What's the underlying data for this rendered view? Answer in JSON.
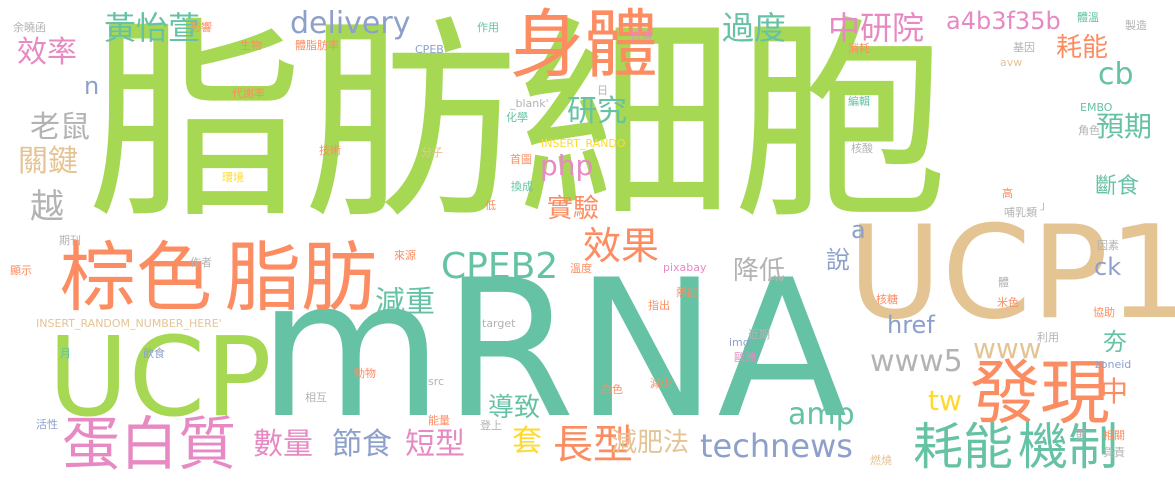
{
  "palette": {
    "green": "#a6d854",
    "teal": "#66c2a5",
    "orange": "#fc8d62",
    "tan": "#e5c494",
    "pink": "#e78ac3",
    "blue": "#8da0cb",
    "yellow": "#ffd92f",
    "gray": "#b3b3b3"
  },
  "words": [
    {
      "text": "脂肪細胞",
      "color": "green"
    },
    {
      "text": "mRNA",
      "color": "teal"
    },
    {
      "text": "UCP1",
      "color": "tan"
    },
    {
      "text": "UCP",
      "color": "green"
    },
    {
      "text": "身體",
      "color": "orange"
    },
    {
      "text": "棕色",
      "color": "orange"
    },
    {
      "text": "脂肪",
      "color": "orange"
    },
    {
      "text": "蛋白質",
      "color": "pink"
    },
    {
      "text": "發現",
      "color": "orange"
    },
    {
      "text": "機制",
      "color": "teal"
    },
    {
      "text": "耗能",
      "color": "teal"
    },
    {
      "text": "CPEB2",
      "color": "teal"
    },
    {
      "text": "效果",
      "color": "orange"
    },
    {
      "text": "長型",
      "color": "orange"
    },
    {
      "text": "technews",
      "color": "blue"
    },
    {
      "text": "中研院",
      "color": "pink"
    },
    {
      "text": "過度",
      "color": "teal"
    },
    {
      "text": "a4b3f35b",
      "color": "pink"
    },
    {
      "text": "delivery",
      "color": "blue"
    },
    {
      "text": "黃怡萱",
      "color": "teal"
    },
    {
      "text": "效率",
      "color": "pink"
    },
    {
      "text": "研究",
      "color": "teal"
    },
    {
      "text": "老鼠",
      "color": "gray"
    },
    {
      "text": "關鍵",
      "color": "tan"
    },
    {
      "text": "越",
      "color": "gray"
    },
    {
      "text": "php",
      "color": "pink"
    },
    {
      "text": "實驗",
      "color": "orange"
    },
    {
      "text": "耗能",
      "color": "orange"
    },
    {
      "text": "cb",
      "color": "teal"
    },
    {
      "text": "預期",
      "color": "teal"
    },
    {
      "text": "斷食",
      "color": "teal"
    },
    {
      "text": "中",
      "color": "orange"
    },
    {
      "text": "www5",
      "color": "gray"
    },
    {
      "text": "www",
      "color": "tan"
    },
    {
      "text": "amp",
      "color": "teal"
    },
    {
      "text": "tw",
      "color": "yellow"
    },
    {
      "text": "數量",
      "color": "pink"
    },
    {
      "text": "節食",
      "color": "blue"
    },
    {
      "text": "短型",
      "color": "pink"
    },
    {
      "text": "減肥法",
      "color": "tan"
    },
    {
      "text": "套",
      "color": "yellow"
    },
    {
      "text": "降低",
      "color": "gray"
    },
    {
      "text": "說",
      "color": "blue"
    },
    {
      "text": "減重",
      "color": "teal"
    },
    {
      "text": "導致",
      "color": "teal"
    },
    {
      "text": "夯",
      "color": "teal"
    },
    {
      "text": "href",
      "color": "blue"
    },
    {
      "text": "ck",
      "color": "blue"
    },
    {
      "text": "a",
      "color": "blue"
    },
    {
      "text": "n",
      "color": "blue"
    },
    {
      "text": "余曉函",
      "color": "gray"
    },
    {
      "text": "影響",
      "color": "orange"
    },
    {
      "text": "生物",
      "color": "orange"
    },
    {
      "text": "體脂肪率",
      "color": "orange"
    },
    {
      "text": "CPEB",
      "color": "blue"
    },
    {
      "text": "作用",
      "color": "teal"
    },
    {
      "text": "扮演",
      "color": "pink"
    },
    {
      "text": "消耗",
      "color": "orange"
    },
    {
      "text": "基因",
      "color": "gray"
    },
    {
      "text": "體溫",
      "color": "teal"
    },
    {
      "text": "製造",
      "color": "gray"
    },
    {
      "text": "avw",
      "color": "tan"
    },
    {
      "text": "日",
      "color": "gray"
    },
    {
      "text": "_blank'",
      "color": "gray"
    },
    {
      "text": "代謝率",
      "color": "orange"
    },
    {
      "text": "化學",
      "color": "teal"
    },
    {
      "text": "編輯",
      "color": "teal"
    },
    {
      "text": "EMBO",
      "color": "teal"
    },
    {
      "text": "角色",
      "color": "gray"
    },
    {
      "text": "技術",
      "color": "orange"
    },
    {
      "text": "分子",
      "color": "tan"
    },
    {
      "text": "核酸",
      "color": "gray"
    },
    {
      "text": "INSERT_RANDO",
      "color": "yellow"
    },
    {
      "text": "首圖",
      "color": "orange"
    },
    {
      "text": "環境",
      "color": "yellow"
    },
    {
      "text": "換成",
      "color": "teal"
    },
    {
      "text": "低",
      "color": "orange"
    },
    {
      "text": "高",
      "color": "orange"
    },
    {
      "text": "哺乳類",
      "color": "gray"
    },
    {
      "text": "」",
      "color": "gray"
    },
    {
      "text": "期刊",
      "color": "gray"
    },
    {
      "text": "作者",
      "color": "gray"
    },
    {
      "text": "來源",
      "color": "orange"
    },
    {
      "text": "溫度",
      "color": "orange"
    },
    {
      "text": "pixabay",
      "color": "pink"
    },
    {
      "text": "因素",
      "color": "gray"
    },
    {
      "text": "顯示",
      "color": "orange"
    },
    {
      "text": "熱能",
      "color": "orange"
    },
    {
      "text": "體",
      "color": "gray"
    },
    {
      "text": "核糖",
      "color": "orange"
    },
    {
      "text": "米色",
      "color": "orange"
    },
    {
      "text": "INSERT_RANDOM_NUMBER_HERE'",
      "color": "tan"
    },
    {
      "text": "target",
      "color": "gray"
    },
    {
      "text": "指出",
      "color": "orange"
    },
    {
      "text": "img",
      "color": "blue"
    },
    {
      "text": "近期",
      "color": "gray"
    },
    {
      "text": "協助",
      "color": "orange"
    },
    {
      "text": "月",
      "color": "teal"
    },
    {
      "text": "飲食",
      "color": "blue"
    },
    {
      "text": "歐洲",
      "color": "pink"
    },
    {
      "text": "利用",
      "color": "gray"
    },
    {
      "text": "zoneid",
      "color": "blue"
    },
    {
      "text": "動物",
      "color": "orange"
    },
    {
      "text": "src",
      "color": "gray"
    },
    {
      "text": "減少",
      "color": "orange"
    },
    {
      "text": "相互",
      "color": "gray"
    },
    {
      "text": "白色",
      "color": "orange"
    },
    {
      "text": "更",
      "color": "gray"
    },
    {
      "text": "相關",
      "color": "orange"
    },
    {
      "text": "活性",
      "color": "blue"
    },
    {
      "text": "能量",
      "color": "orange"
    },
    {
      "text": "登上",
      "color": "gray"
    },
    {
      "text": "燃燒",
      "color": "tan"
    },
    {
      "text": "負責",
      "color": "gray"
    }
  ]
}
